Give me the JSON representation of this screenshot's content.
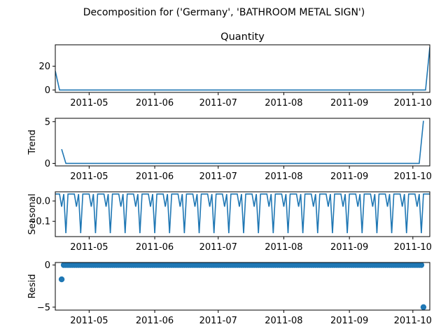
{
  "figure_title": "Decomposition for ('Germany', 'BATHROOM METAL SIGN')",
  "colors": {
    "line": "#1f77b4",
    "axes": "#000000",
    "background": "#ffffff"
  },
  "chart_data": [
    {
      "type": "line",
      "title": "Quantity",
      "ylabel": "",
      "xlim": [
        "2011-04-15",
        "2011-10-09"
      ],
      "ylim": [
        -2,
        38
      ],
      "yticks": [
        0,
        20
      ],
      "xticks": [
        "2011-05",
        "2011-06",
        "2011-07",
        "2011-08",
        "2011-09",
        "2011-10"
      ],
      "start_date": "2011-04-15",
      "end_date": "2011-10-09",
      "series": [
        {
          "x": [
            "2011-04-15",
            "2011-04-17",
            "2011-10-07",
            "2011-10-09"
          ],
          "y": [
            16,
            0,
            0,
            36
          ]
        }
      ]
    },
    {
      "type": "line",
      "title": "",
      "ylabel": "Trend",
      "xlim": [
        "2011-04-15",
        "2011-10-09"
      ],
      "ylim": [
        -0.3,
        5.4
      ],
      "yticks": [
        0,
        5
      ],
      "xticks": [
        "2011-05",
        "2011-06",
        "2011-07",
        "2011-08",
        "2011-09",
        "2011-10"
      ],
      "series": [
        {
          "x": [
            "2011-04-18",
            "2011-04-20",
            "2011-10-04",
            "2011-10-06"
          ],
          "y": [
            1.7,
            0,
            0,
            5.1
          ]
        }
      ]
    },
    {
      "type": "line",
      "title": "",
      "ylabel": "Seasonal",
      "xlim": [
        "2011-04-15",
        "2011-10-09"
      ],
      "ylim": [
        -0.175,
        0.045
      ],
      "yticks": [
        0.0,
        -0.1
      ],
      "ytick_labels": [
        "0.0",
        "−0.1"
      ],
      "xticks": [
        "2011-05",
        "2011-06",
        "2011-07",
        "2011-08",
        "2011-09",
        "2011-10"
      ],
      "period_days": 7,
      "weekly_pattern": [
        0.034,
        0.034,
        0.034,
        -0.028,
        0.034,
        -0.158,
        0.034
      ],
      "series": [
        {
          "x_start": "2011-04-15",
          "x_end": "2011-10-09"
        }
      ]
    },
    {
      "type": "scatter",
      "title": "",
      "ylabel": "Resid",
      "xlim": [
        "2011-04-15",
        "2011-10-09"
      ],
      "ylim": [
        -5.35,
        0.3
      ],
      "yticks": [
        0,
        -5
      ],
      "ytick_labels": [
        "0",
        "−5"
      ],
      "xticks": [
        "2011-05",
        "2011-06",
        "2011-07",
        "2011-08",
        "2011-09",
        "2011-10"
      ],
      "series": [
        {
          "x_start": "2011-04-18",
          "x_end": "2011-10-06",
          "baseline": 0,
          "outliers": [
            {
              "x": "2011-04-18",
              "y": -1.7
            },
            {
              "x": "2011-10-06",
              "y": -5.0
            }
          ]
        }
      ]
    }
  ]
}
